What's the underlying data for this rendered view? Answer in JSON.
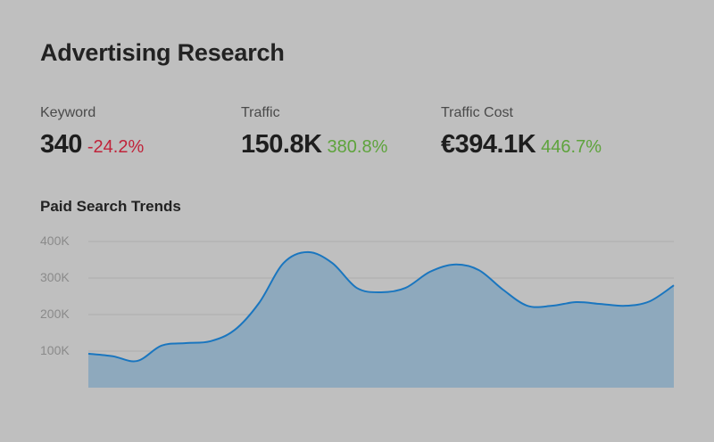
{
  "header": {
    "title": "Advertising Research"
  },
  "metrics": [
    {
      "label": "Keyword",
      "value": "340",
      "delta": "-24.2%",
      "trend": "negative"
    },
    {
      "label": "Traffic",
      "value": "150.8K",
      "delta": "380.8%",
      "trend": "positive"
    },
    {
      "label": "Traffic Cost",
      "value": "€394.1K",
      "delta": "446.7%",
      "trend": "positive"
    }
  ],
  "colors": {
    "background": "#bfbfbf",
    "negative": "#c0233a",
    "positive": "#5ea33c",
    "line": "#1a76bf",
    "area": "#8ea9bd"
  },
  "chart_data": {
    "type": "area",
    "title": "Paid Search Trends",
    "xlabel": "",
    "ylabel": "",
    "ylim": [
      0,
      400000
    ],
    "y_ticks": [
      "100K",
      "200K",
      "300K",
      "400K"
    ],
    "grid": true,
    "legend": null,
    "x": [
      0,
      1,
      2,
      3,
      4,
      5,
      6,
      7,
      8,
      9,
      10,
      11,
      12,
      13,
      14,
      15,
      16,
      17,
      18,
      19,
      20,
      21,
      22,
      23,
      24
    ],
    "values": [
      93000,
      86000,
      73000,
      115000,
      122000,
      127000,
      158000,
      232000,
      341000,
      371000,
      341000,
      273000,
      261000,
      273000,
      317000,
      337000,
      322000,
      268000,
      224000,
      224000,
      234000,
      229000,
      224000,
      236000,
      280000
    ]
  }
}
